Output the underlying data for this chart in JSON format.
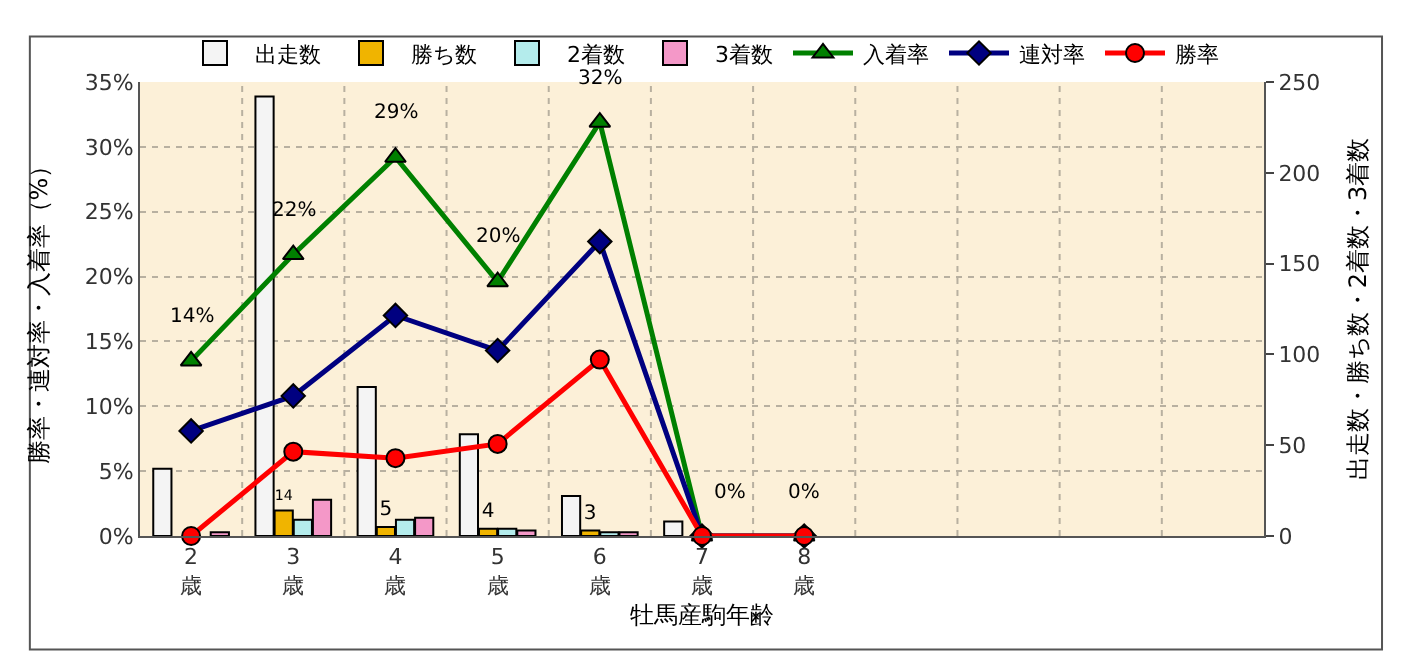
{
  "chart_data": {
    "type": "bar",
    "categories": [
      "2\n歳",
      "3\n歳",
      "4\n歳",
      "5\n歳",
      "6\n歳",
      "7\n歳",
      "8\n歳",
      null,
      null,
      null,
      null
    ],
    "xlabel": "牡馬産駒年齢",
    "ylabel": "勝率・連対率・入着率（%）",
    "y2label": "出走数・勝ち数・2着数・3着数",
    "series": [
      {
        "name": "出走数",
        "axis": "y2",
        "color": "#f4f4f4",
        "values": [
          37,
          242,
          82,
          56,
          22,
          8,
          null,
          null,
          null,
          null,
          null
        ]
      },
      {
        "name": "勝ち数",
        "axis": "y2",
        "color": "#f0b400",
        "values": [
          null,
          14,
          5,
          4,
          3,
          null,
          null,
          null,
          null,
          null,
          null
        ],
        "value_labels": [
          null,
          "14",
          "5",
          "4",
          "3",
          null,
          null,
          null,
          null,
          null,
          null
        ]
      },
      {
        "name": "2着数",
        "axis": "y2",
        "color": "#b4ecec",
        "values": [
          null,
          9,
          9,
          4,
          2,
          null,
          null,
          null,
          null,
          null,
          null
        ]
      },
      {
        "name": "3着数",
        "axis": "y2",
        "color": "#f498c8",
        "values": [
          2,
          20,
          10,
          3,
          2,
          null,
          null,
          null,
          null,
          null,
          null
        ]
      },
      {
        "name": "入着率",
        "type": "line",
        "color": "#008000",
        "marker": "triangle",
        "values": [
          13.5,
          21.7,
          29.2,
          19.6,
          31.9,
          0,
          0,
          null,
          null,
          null,
          null
        ],
        "value_labels": [
          "14%",
          "22%",
          "29%",
          "20%",
          "32%",
          "0%",
          "0%",
          null,
          null,
          null,
          null
        ]
      },
      {
        "name": "連対率",
        "type": "line",
        "color": "#000080",
        "marker": "diamond",
        "values": [
          8.1,
          10.8,
          17.0,
          14.3,
          22.7,
          0,
          0,
          null,
          null,
          null,
          null
        ]
      },
      {
        "name": "勝率",
        "type": "line",
        "color": "#ff0000",
        "marker": "circle",
        "values": [
          0,
          6.5,
          6.0,
          7.1,
          13.6,
          0,
          0,
          null,
          null,
          null,
          null
        ]
      }
    ],
    "ylim": [
      0,
      35
    ],
    "yticks": [
      {
        "value": 0,
        "label": "0%"
      },
      {
        "value": 5,
        "label": "5%"
      },
      {
        "value": 10,
        "label": "10%"
      },
      {
        "value": 15,
        "label": "15%"
      },
      {
        "value": 20,
        "label": "20%"
      },
      {
        "value": 25,
        "label": "25%"
      },
      {
        "value": 30,
        "label": "30%"
      },
      {
        "value": 35,
        "label": "35%"
      }
    ],
    "y2lim": [
      0,
      250
    ],
    "y2ticks": [
      0,
      50,
      100,
      150,
      200,
      250
    ],
    "grid": true,
    "legend": "top"
  }
}
